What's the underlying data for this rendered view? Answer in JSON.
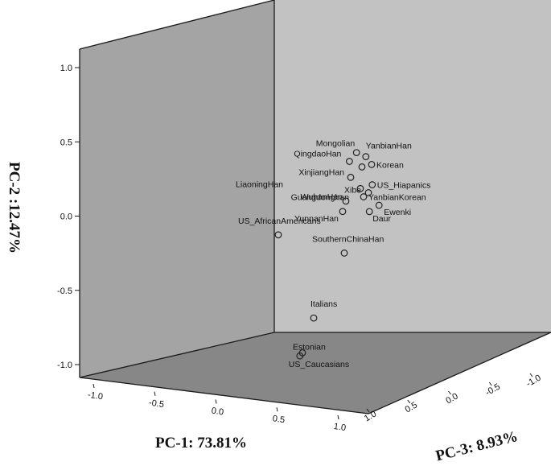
{
  "chart_data": {
    "type": "scatter",
    "title": "",
    "xlabel": "PC-1: 73.81%",
    "ylabel": "PC-2 :12.47%",
    "zlabel": "PC-3: 8.93%",
    "x_ticks": [
      "-1.0",
      "-0.5",
      "0.0",
      "0.5",
      "1.0"
    ],
    "y_ticks": [
      "1.0",
      "0.5",
      "0.0",
      "-0.5",
      "-1.0"
    ],
    "z_ticks": [
      "1.0",
      "0.5",
      "0.0",
      "-0.5",
      "-1.0"
    ],
    "xlim": [
      -1.0,
      1.0
    ],
    "ylim": [
      -1.0,
      1.0
    ],
    "zlim": [
      -1.0,
      1.0
    ],
    "grid": false,
    "legend": "none",
    "colors": {
      "left_wall": "#a4a4a4",
      "back_wall": "#c2c2c2",
      "floor": "#878787",
      "marker_stroke": "#222222"
    },
    "points": [
      {
        "label": "Mongolian",
        "screen_x": 0.09,
        "y": 0.43,
        "z": -0.32
      },
      {
        "label": "YanbianHan",
        "screen_x": 0.16,
        "y": 0.4,
        "z": -0.38
      },
      {
        "label": "QingdaoHan",
        "screen_x": 0.05,
        "y": 0.37,
        "z": -0.34
      },
      {
        "label": "XinjiangHan",
        "screen_x": 0.14,
        "y": 0.33,
        "z": -0.4
      },
      {
        "label": "Korean",
        "screen_x": 0.23,
        "y": 0.34,
        "z": -0.55
      },
      {
        "label": "LiaoningHan",
        "screen_x": 0.07,
        "y": 0.26,
        "z": -0.4
      },
      {
        "label": "US_Hiapanics",
        "screen_x": 0.25,
        "y": 0.2,
        "z": -0.63
      },
      {
        "label": "Guangdonghan",
        "screen_x": 0.15,
        "y": 0.18,
        "z": -0.5
      },
      {
        "label": "Xibe",
        "screen_x": 0.21,
        "y": 0.15,
        "z": -0.55
      },
      {
        "label": "YanbianKorean",
        "screen_x": 0.19,
        "y": 0.12,
        "z": -0.6
      },
      {
        "label": "WuhanHan",
        "screen_x": 0.04,
        "y": 0.1,
        "z": -0.4
      },
      {
        "label": "Ewenki",
        "screen_x": 0.3,
        "y": 0.06,
        "z": -0.67
      },
      {
        "label": "YunnanHan",
        "screen_x": 0.02,
        "y": 0.03,
        "z": -0.4
      },
      {
        "label": "Daur",
        "screen_x": 0.23,
        "y": 0.02,
        "z": -0.62
      },
      {
        "label": "US_AfricanAmericans",
        "screen_x": -0.46,
        "y": -0.11,
        "z": 0.0
      },
      {
        "label": "SouthernChinaHan",
        "screen_x": 0.03,
        "y": -0.25,
        "z": -0.4
      },
      {
        "label": "Italians",
        "screen_x": -0.24,
        "y": -0.67,
        "z": 0.0
      },
      {
        "label": "Estonian",
        "screen_x": -0.33,
        "y": -0.9,
        "z": 0.1
      },
      {
        "label": "US_Caucasians",
        "screen_x": -0.35,
        "y": -0.92,
        "z": 0.12
      }
    ]
  }
}
